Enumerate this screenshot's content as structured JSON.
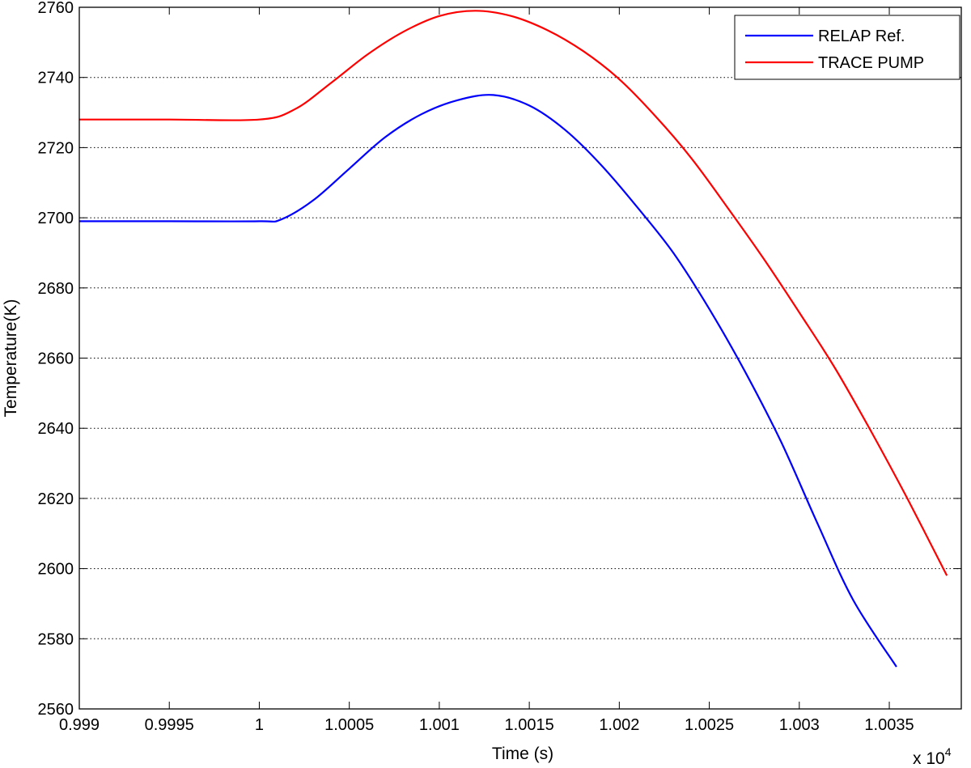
{
  "chart_data": {
    "type": "line",
    "xlabel": "Time (s)",
    "ylabel": "Temperature(K)",
    "x_multiplier_label": "x 10",
    "x_multiplier_exponent": "4",
    "xlim": [
      0.999,
      1.0039
    ],
    "ylim": [
      2560,
      2760
    ],
    "xticks": [
      0.999,
      0.9995,
      1,
      1.0005,
      1.001,
      1.0015,
      1.002,
      1.0025,
      1.003,
      1.0035
    ],
    "xtick_labels": [
      "0.999",
      "0.9995",
      "1",
      "1.0005",
      "1.001",
      "1.0015",
      "1.002",
      "1.0025",
      "1.003",
      "1.0035"
    ],
    "yticks": [
      2560,
      2580,
      2600,
      2620,
      2640,
      2660,
      2680,
      2700,
      2720,
      2740,
      2760
    ],
    "ytick_labels": [
      "2560",
      "2580",
      "2600",
      "2620",
      "2640",
      "2660",
      "2680",
      "2700",
      "2720",
      "2740",
      "2760"
    ],
    "grid": "horizontal-dotted",
    "legend_position": "top-right",
    "series": [
      {
        "name": "RELAP Ref.",
        "color": "#0000ff",
        "x": [
          0.999,
          0.9995,
          1.0,
          1.00012,
          1.0003,
          1.0005,
          1.0007,
          1.0009,
          1.0011,
          1.0013,
          1.0015,
          1.0017,
          1.0019,
          1.0021,
          1.0023,
          1.0025,
          1.0027,
          1.0029,
          1.0031,
          1.0033,
          1.00354
        ],
        "y": [
          2699,
          2699,
          2699,
          2699.5,
          2705,
          2714,
          2723,
          2729.5,
          2733.5,
          2735,
          2732,
          2725,
          2715,
          2703,
          2690,
          2674,
          2656,
          2636,
          2613,
          2591,
          2572
        ]
      },
      {
        "name": "TRACE PUMP",
        "color": "#ff0000",
        "x": [
          0.999,
          0.9995,
          1.0,
          1.0002,
          1.0004,
          1.0006,
          1.0008,
          1.001,
          1.0012,
          1.0014,
          1.0016,
          1.0018,
          1.002,
          1.0022,
          1.0024,
          1.0026,
          1.0028,
          1.003,
          1.0032,
          1.0034,
          1.0036,
          1.00382
        ],
        "y": [
          2728,
          2728,
          2728,
          2731,
          2738.5,
          2746.5,
          2753,
          2757.5,
          2759,
          2757.5,
          2753.5,
          2747.5,
          2739.5,
          2729,
          2717,
          2703,
          2688.5,
          2673,
          2657,
          2639,
          2620,
          2598
        ]
      }
    ]
  }
}
